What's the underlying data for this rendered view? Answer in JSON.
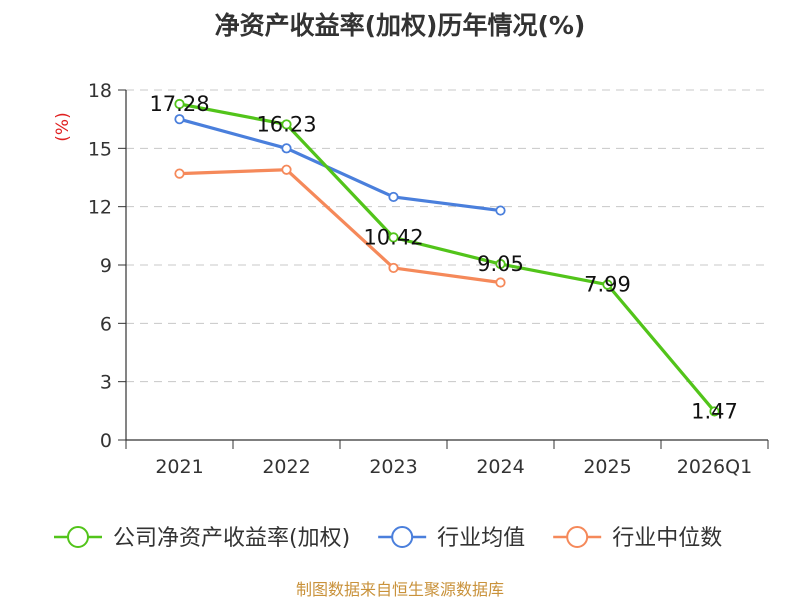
{
  "chart_data": {
    "type": "line",
    "title": "净资产收益率(加权)历年情况(%)",
    "ylabel": "(%)",
    "xlabel": "",
    "categories": [
      "2021",
      "2022",
      "2023",
      "2024",
      "2025",
      "2026Q1"
    ],
    "ylim": [
      0,
      18
    ],
    "yticks": [
      0,
      3,
      6,
      9,
      12,
      15,
      18
    ],
    "grid": true,
    "legend_position": "bottom",
    "series": [
      {
        "name": "公司净资产收益率(加权)",
        "color": "#52c41a",
        "values": [
          17.28,
          16.23,
          10.42,
          9.05,
          7.99,
          1.47
        ],
        "labels": [
          "17.28",
          "16.23",
          "10.42",
          "9.05",
          "7.99",
          "1.47"
        ]
      },
      {
        "name": "行业均值",
        "color": "#4a7fdc",
        "values": [
          16.5,
          15.0,
          12.5,
          11.8,
          null,
          null
        ]
      },
      {
        "name": "行业中位数",
        "color": "#f5895a",
        "values": [
          13.7,
          13.9,
          8.85,
          8.1,
          null,
          null
        ]
      }
    ]
  },
  "footer": {
    "source": "制图数据来自恒生聚源数据库"
  }
}
